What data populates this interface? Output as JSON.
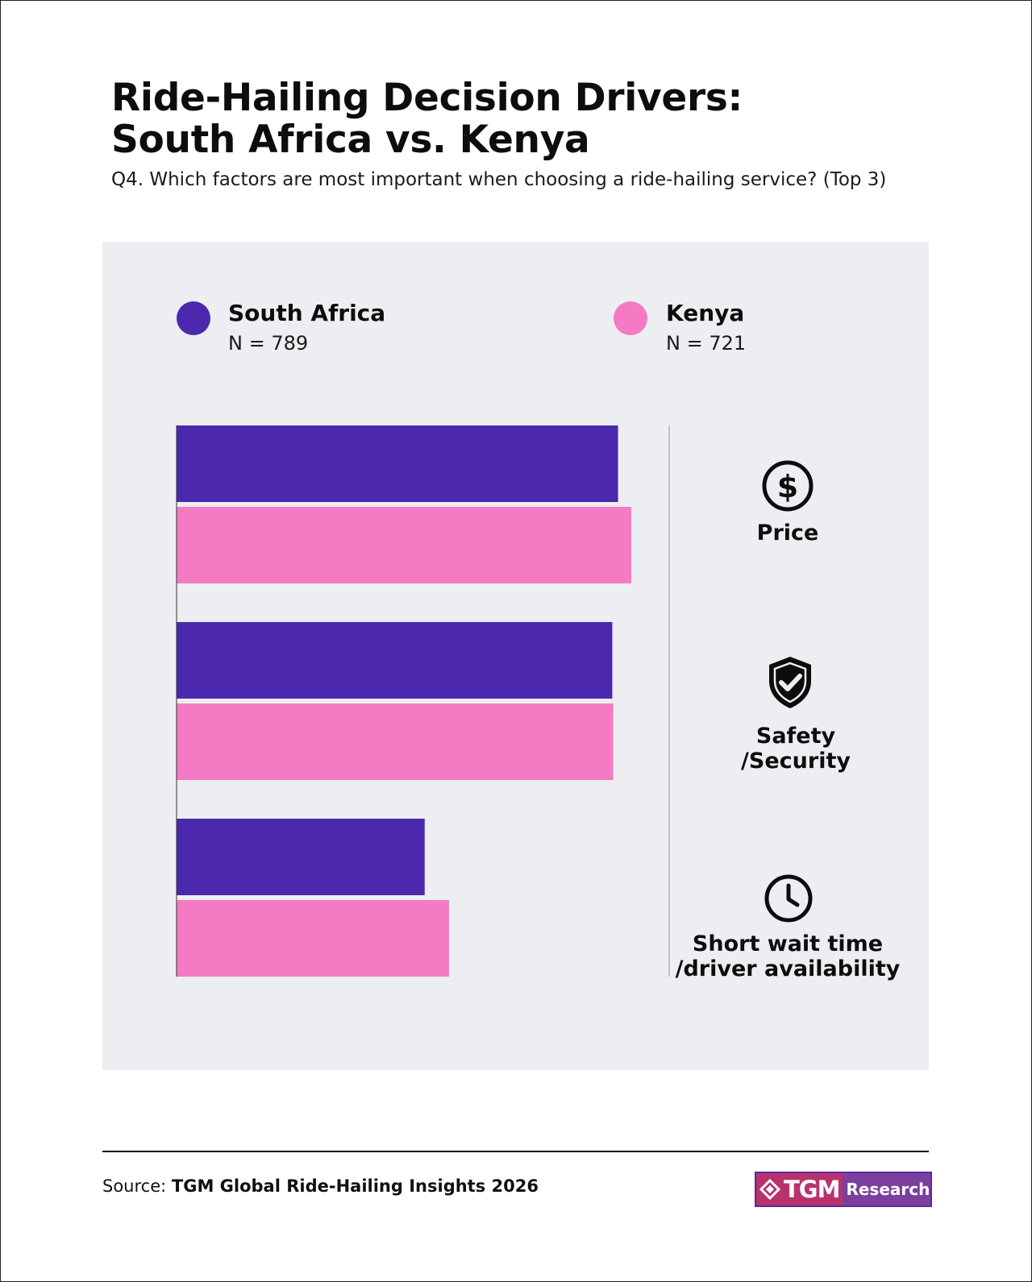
{
  "header": {
    "title_line1": "Ride-Hailing Decision Drivers:",
    "title_line2": "South Africa vs. Kenya",
    "subtitle": "Q4. Which factors are most important when choosing a ride-hailing service? (Top 3)"
  },
  "legend": {
    "south_africa": {
      "name": "South Africa",
      "n": "N = 789",
      "color": "#4b28ad"
    },
    "kenya": {
      "name": "Kenya",
      "n": "N = 721",
      "color": "#f47ac3"
    }
  },
  "chart_data": {
    "type": "bar",
    "orientation": "horizontal",
    "categories": [
      "Price",
      "Safety\n/Security",
      "Short wait time\n/driver availability"
    ],
    "category_icons": [
      "dollar-icon",
      "shield-check-icon",
      "clock-icon"
    ],
    "series": [
      {
        "name": "South Africa",
        "values": [
          100,
          98.7,
          56.2
        ],
        "color": "#4b28ad"
      },
      {
        "name": "Kenya",
        "values": [
          103,
          98.9,
          61.7
        ],
        "color": "#f47ac3"
      }
    ],
    "xlim": [
      0,
      103
    ],
    "axis_labels_shown": false,
    "grid": false
  },
  "footer": {
    "source_prefix": "Source: ",
    "source_name": "TGM Global Ride-Hailing Insights 2026",
    "logo_text_main": "TGM",
    "logo_text_sub": "Research"
  }
}
